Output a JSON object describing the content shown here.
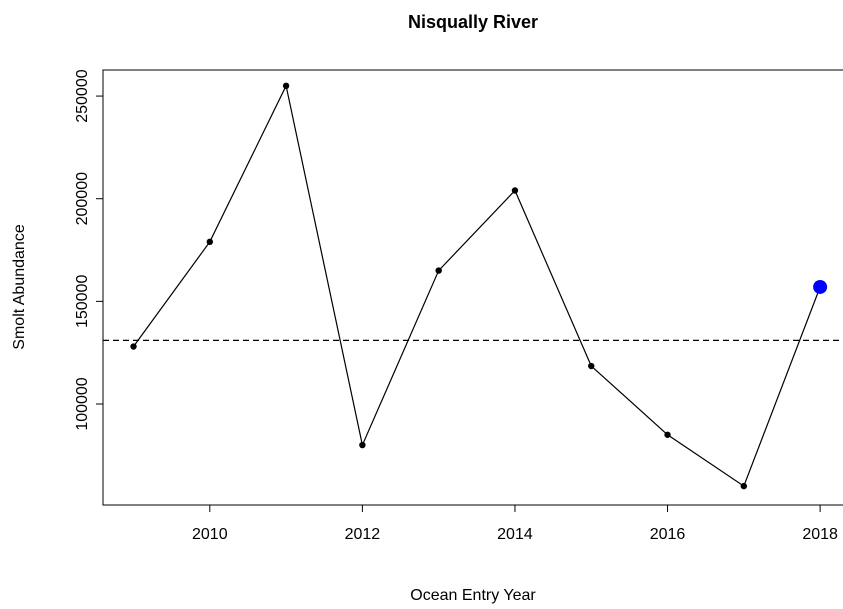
{
  "chart_data": {
    "type": "line",
    "title": "Nisqually River",
    "x_label": "Ocean Entry Year",
    "y_label": "Smolt Abundance",
    "x": [
      2009,
      2010,
      2011,
      2012,
      2013,
      2014,
      2015,
      2016,
      2017,
      2018
    ],
    "values": [
      128000,
      179000,
      255000,
      80000,
      165000,
      204000,
      118500,
      85000,
      60000,
      157000
    ],
    "color": "#000000",
    "highlight_last": true,
    "highlight_color": "#0000ff",
    "reference_line": 131000,
    "reference_line_style": "dashed",
    "xlim": [
      2008.6,
      2018.3
    ],
    "xticks": [
      2010,
      2012,
      2014,
      2016,
      2018
    ],
    "ylim": [
      50800,
      262700
    ],
    "yticks": [
      100000,
      150000,
      200000,
      250000
    ]
  }
}
